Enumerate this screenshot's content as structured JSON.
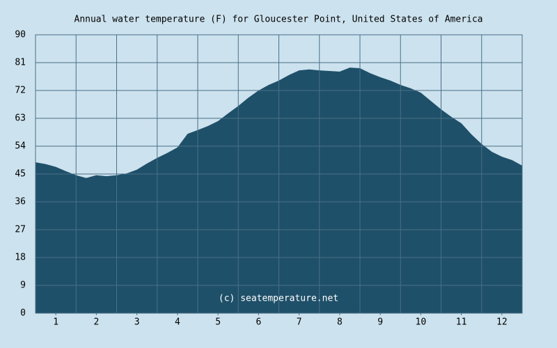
{
  "chart_data": {
    "type": "area",
    "title": "Annual water temperature (F) for Gloucester Point, United States of America",
    "annotation": "(c) seatemperature.net",
    "x": [
      0.5,
      0.75,
      1,
      1.25,
      1.5,
      1.75,
      2,
      2.25,
      2.5,
      2.75,
      3,
      3.25,
      3.5,
      3.75,
      4,
      4.25,
      4.5,
      4.75,
      5,
      5.25,
      5.5,
      5.75,
      6,
      6.25,
      6.5,
      6.75,
      7,
      7.25,
      7.5,
      7.75,
      8,
      8.25,
      8.5,
      8.75,
      9,
      9.25,
      9.5,
      9.75,
      10,
      10.25,
      10.5,
      10.75,
      11,
      11.25,
      11.5,
      11.75,
      12,
      12.25,
      12.5
    ],
    "series": [
      {
        "color": "#1f5069",
        "values": [
          48.8,
          48.2,
          47.3,
          45.9,
          44.6,
          43.7,
          44.6,
          44.3,
          44.6,
          45.2,
          46.4,
          48.4,
          50.2,
          51.8,
          53.6,
          58.0,
          59.2,
          60.5,
          62.1,
          64.6,
          67.0,
          69.7,
          72.0,
          73.8,
          75.2,
          77.0,
          78.5,
          78.8,
          78.5,
          78.3,
          78.1,
          79.4,
          79.2,
          77.6,
          76.3,
          75.2,
          73.8,
          72.7,
          71.3,
          68.6,
          65.9,
          63.5,
          61.4,
          57.8,
          54.7,
          52.2,
          50.6,
          49.5,
          47.7
        ]
      }
    ],
    "xlim": [
      0.5,
      12.5
    ],
    "xticks": [
      1,
      2,
      3,
      4,
      5,
      6,
      7,
      8,
      9,
      10,
      11,
      12
    ],
    "ylim": [
      0,
      90
    ],
    "yticks": [
      0,
      9,
      18,
      27,
      36,
      45,
      54,
      63,
      72,
      81,
      90
    ],
    "grid": true
  }
}
